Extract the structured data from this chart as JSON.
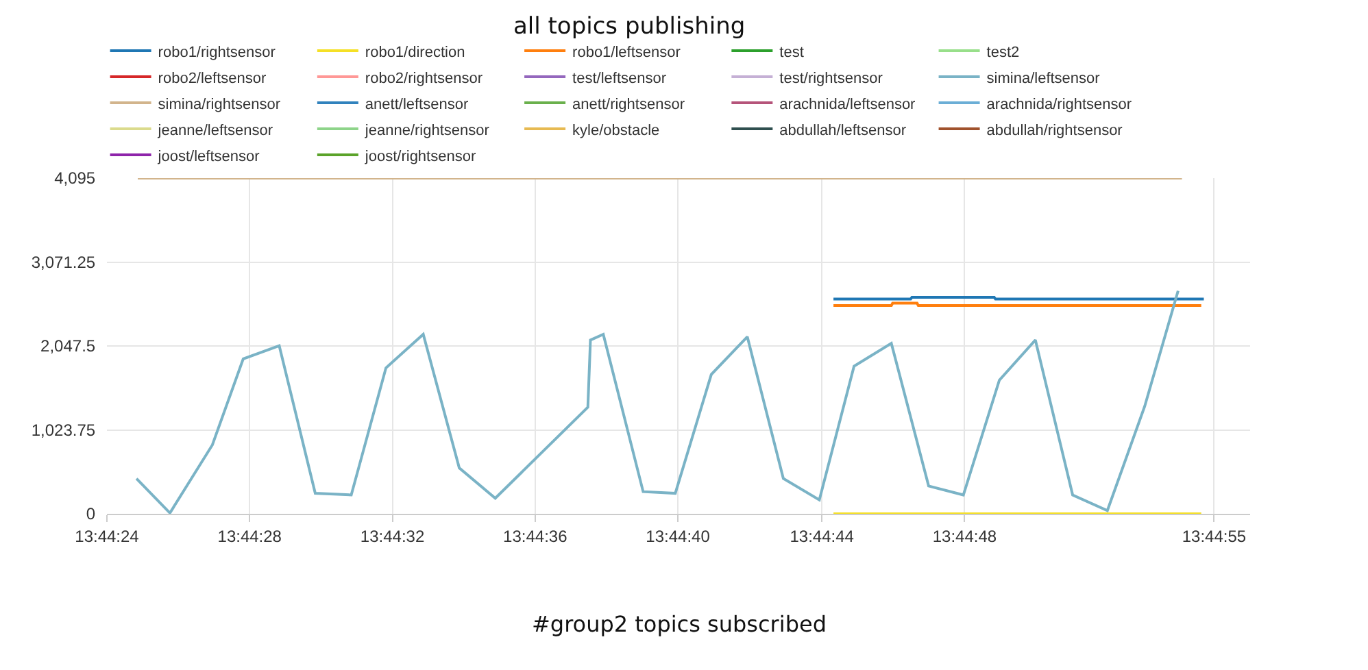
{
  "chart_data": {
    "type": "line",
    "title": "all topics publishing",
    "annotations": [
      "#group2 topics subscribed"
    ],
    "xlim": [
      13.74,
      13.74889
    ],
    "xticks": [
      {
        "value": 13.74,
        "label": "13:44:24"
      },
      {
        "value": 13.74111,
        "label": "13:44:28"
      },
      {
        "value": 13.74222,
        "label": "13:44:32"
      },
      {
        "value": 13.74333,
        "label": "13:44:36"
      },
      {
        "value": 13.74444,
        "label": "13:44:40"
      },
      {
        "value": 13.74556,
        "label": "13:44:44"
      },
      {
        "value": 13.74667,
        "label": "13:44:48"
      },
      {
        "value": 13.74861,
        "label": "13:44:55"
      }
    ],
    "ylim": [
      0,
      4095
    ],
    "yticks": [
      {
        "value": 0,
        "label": "0"
      },
      {
        "value": 1023.75,
        "label": "1,023.75"
      },
      {
        "value": 2047.5,
        "label": "2,047.5"
      },
      {
        "value": 3071.25,
        "label": "3,071.25"
      },
      {
        "value": 4095,
        "label": "4,095"
      }
    ],
    "grid": true,
    "legend": "top",
    "marker": "none",
    "line_style": "solid",
    "series": [
      {
        "name": "robo1/rightsensor",
        "color": "#1f77b4",
        "x": [
          13.74565,
          13.74625,
          13.74626,
          13.7469,
          13.74691,
          13.74853
        ],
        "values": [
          2620,
          2620,
          2640,
          2640,
          2620,
          2620
        ]
      },
      {
        "name": "robo1/direction",
        "color": "#f5e026",
        "x": [
          13.74565,
          13.74851
        ],
        "values": [
          0,
          0
        ]
      },
      {
        "name": "robo1/leftsensor",
        "color": "#ff7f0e",
        "x": [
          13.74565,
          13.7461,
          13.74611,
          13.7463,
          13.74631,
          13.74851
        ],
        "values": [
          2540,
          2540,
          2570,
          2570,
          2540,
          2540
        ]
      },
      {
        "name": "test",
        "color": "#2ca02c"
      },
      {
        "name": "test2",
        "color": "#98df8a"
      },
      {
        "name": "robo2/leftsensor",
        "color": "#d62728"
      },
      {
        "name": "robo2/rightsensor",
        "color": "#ff9896"
      },
      {
        "name": "test/leftsensor",
        "color": "#9467bd"
      },
      {
        "name": "test/rightsensor",
        "color": "#c5b0d5"
      },
      {
        "name": "simina/leftsensor",
        "color": "#7ab3c6",
        "x": [
          13.74023,
          13.74049,
          13.74082,
          13.74106,
          13.74134,
          13.74162,
          13.7419,
          13.74217,
          13.74246,
          13.74274,
          13.74302,
          13.74374,
          13.74376,
          13.74386,
          13.74417,
          13.74442,
          13.7447,
          13.74498,
          13.74526,
          13.74554,
          13.74581,
          13.7461,
          13.74639,
          13.74666,
          13.74694,
          13.74722,
          13.74751,
          13.74778,
          13.74807,
          13.74833
        ],
        "values": [
          430,
          10,
          840,
          1890,
          2050,
          250,
          230,
          1780,
          2190,
          560,
          190,
          1300,
          2120,
          2190,
          270,
          250,
          1700,
          2160,
          430,
          170,
          1800,
          2080,
          340,
          230,
          1630,
          2120,
          230,
          40,
          1310,
          2720
        ]
      },
      {
        "name": "simina/rightsensor",
        "color": "#d2b48c",
        "x": [
          13.74024,
          13.74836
        ],
        "values": [
          4095,
          4095
        ]
      },
      {
        "name": "anett/leftsensor",
        "color": "#3182bd"
      },
      {
        "name": "anett/rightsensor",
        "color": "#6ab04c"
      },
      {
        "name": "arachnida/leftsensor",
        "color": "#b5547a"
      },
      {
        "name": "arachnida/rightsensor",
        "color": "#6baed6"
      },
      {
        "name": "jeanne/leftsensor",
        "color": "#dbdb8d"
      },
      {
        "name": "jeanne/rightsensor",
        "color": "#8ed48a"
      },
      {
        "name": "kyle/obstacle",
        "color": "#e7ba52"
      },
      {
        "name": "abdullah/leftsensor",
        "color": "#2f4f4f"
      },
      {
        "name": "abdullah/rightsensor",
        "color": "#a0522d"
      },
      {
        "name": "joost/leftsensor",
        "color": "#8e24aa"
      },
      {
        "name": "joost/rightsensor",
        "color": "#5ba32a"
      }
    ]
  }
}
